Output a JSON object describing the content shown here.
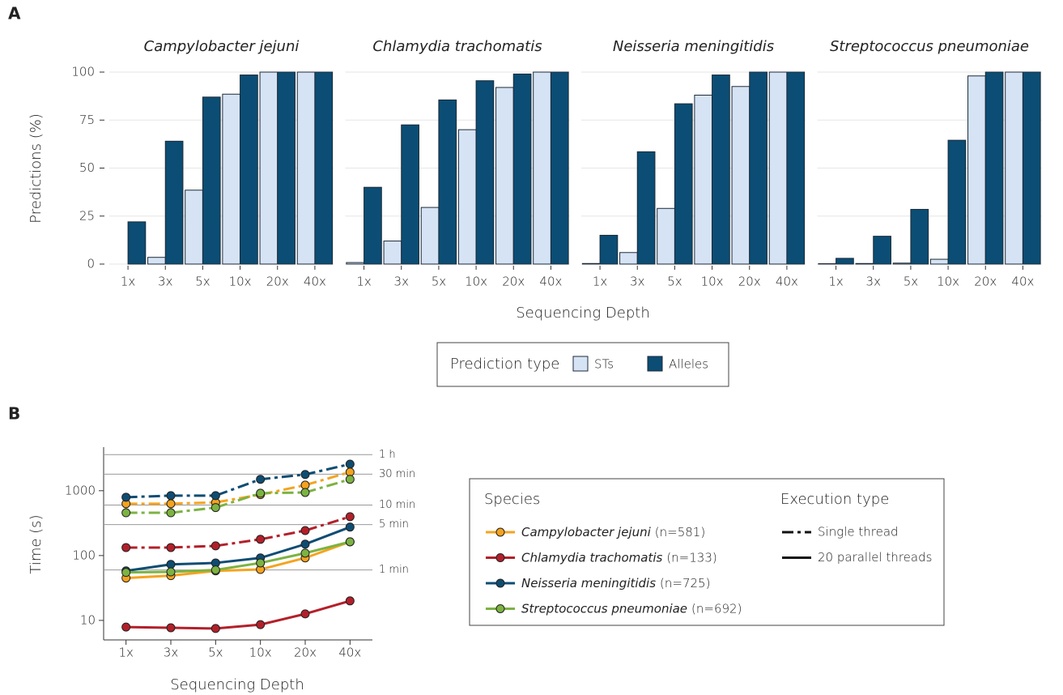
{
  "chart_data": [
    {
      "type": "bar",
      "panel_label": "A",
      "facets": [
        "Campylobacter jejuni",
        "Chlamydia trachomatis",
        "Neisseria meningitidis",
        "Streptococcus pneumoniae"
      ],
      "categories": [
        "1x",
        "3x",
        "5x",
        "10x",
        "20x",
        "40x"
      ],
      "series": [
        {
          "name": "STs",
          "color": "#d5e3f5",
          "values": [
            [
              0,
              3.5,
              38.5,
              88.5,
              100,
              100
            ],
            [
              0.8,
              12,
              29.5,
              70,
              92,
              100
            ],
            [
              0.3,
              6,
              29,
              88,
              92.5,
              100
            ],
            [
              0.2,
              0.3,
              0.5,
              2.5,
              98,
              100
            ]
          ]
        },
        {
          "name": "Alleles",
          "color": "#0b4d74",
          "values": [
            [
              22,
              64,
              87,
              98.5,
              100,
              100
            ],
            [
              40,
              72.5,
              85.5,
              95.5,
              99,
              100
            ],
            [
              15,
              58.5,
              83.5,
              98.5,
              100,
              100
            ],
            [
              3,
              14.5,
              28.5,
              64.5,
              100,
              100
            ]
          ]
        }
      ],
      "y_label": "Predictions (%)",
      "x_label": "Sequencing Depth",
      "legend_title": "Prediction type",
      "ylim": [
        0,
        100
      ],
      "yticks": [
        0,
        25,
        50,
        75,
        100
      ],
      "grid": true
    },
    {
      "type": "line",
      "panel_label": "B",
      "log_scale": true,
      "categories": [
        "1x",
        "3x",
        "5x",
        "10x",
        "20x",
        "40x"
      ],
      "y_label": "Time (s)",
      "x_label": "Sequencing Depth",
      "ylim": [
        5,
        4700
      ],
      "yticks": [
        10,
        100,
        1000
      ],
      "reference_lines": [
        {
          "value": 60,
          "label": "1 min"
        },
        {
          "value": 300,
          "label": "5 min"
        },
        {
          "value": 600,
          "label": "10 min"
        },
        {
          "value": 1800,
          "label": "30 min"
        },
        {
          "value": 3600,
          "label": "1 h"
        }
      ],
      "legend_titles": [
        "Species",
        "Execution type"
      ],
      "execution_types": [
        "Single thread",
        "20 parallel threads"
      ],
      "series": [
        {
          "name": "Campylobacter jejuni",
          "count_label": "(n=581)",
          "color": "#f5a31f",
          "single_thread": [
            630,
            630,
            660,
            870,
            1220,
            1940
          ],
          "parallel": [
            45,
            49,
            58,
            61,
            92,
            163
          ]
        },
        {
          "name": "Chlamydia trachomatis",
          "count_label": "(n=133)",
          "color": "#b3202a",
          "single_thread": [
            133,
            133,
            141,
            178,
            243,
            398
          ],
          "parallel": [
            7.9,
            7.7,
            7.5,
            8.6,
            12.6,
            20
          ]
        },
        {
          "name": "Neisseria meningitidis",
          "count_label": "(n=725)",
          "color": "#0e4d73",
          "single_thread": [
            794,
            840,
            840,
            1500,
            1780,
            2570
          ],
          "parallel": [
            58,
            73,
            77,
            92,
            150,
            275
          ]
        },
        {
          "name": "Streptococcus pneumoniae",
          "count_label": "(n=692)",
          "color": "#7cb342",
          "single_thread": [
            457,
            457,
            550,
            915,
            940,
            1500
          ],
          "parallel": [
            55,
            56,
            60,
            77,
            109,
            163
          ]
        }
      ]
    }
  ]
}
